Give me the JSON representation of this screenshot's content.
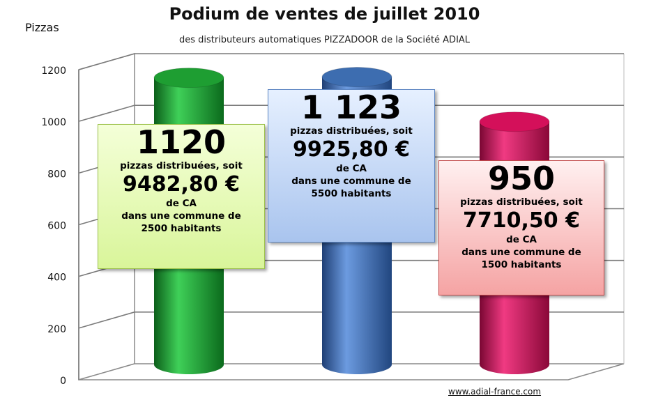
{
  "chart_data": {
    "type": "bar",
    "title": "Podium de ventes de juillet 2010",
    "subtitle": "des distributeurs automatiques PIZZADOOR de la Société ADIAL",
    "ylabel": "Pizzas",
    "ylim": [
      0,
      1200
    ],
    "yticks": [
      "0",
      "200",
      "400",
      "600",
      "800",
      "1000",
      "1200"
    ],
    "grid": true,
    "values": [
      1120,
      1123,
      950
    ],
    "colors": [
      "#1e9e32",
      "#3d6db0",
      "#d4105a"
    ]
  },
  "callouts": [
    {
      "big": "1120",
      "line1": "pizzas distribuées, soit",
      "amount": "9482,80 €",
      "line2": "de CA",
      "line3": "dans une commune de",
      "line4": "2500 habitants"
    },
    {
      "big": "1 123",
      "line1": "pizzas distribuées, soit",
      "amount": "9925,80 €",
      "line2": "de CA",
      "line3": "dans une commune de",
      "line4": "5500 habitants"
    },
    {
      "big": "950",
      "line1": "pizzas distribuées, soit",
      "amount": "7710,50 €",
      "line2": "de CA",
      "line3": "dans une commune de",
      "line4": "1500 habitants"
    }
  ],
  "footer": {
    "website": "www.adial-france.com"
  }
}
